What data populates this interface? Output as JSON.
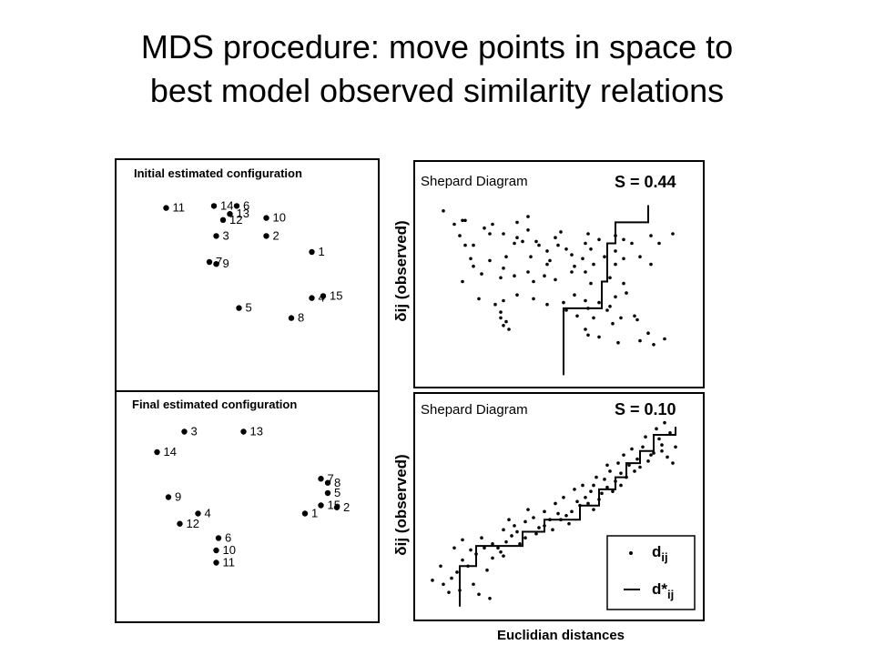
{
  "title": {
    "line1": "MDS procedure: move points in space to",
    "line2": "best model observed similarity relations"
  },
  "panels": {
    "initial_title": "Initial estimated configuration",
    "final_title": "Final estimated configuration",
    "shepard_title": "Shepard Diagram",
    "stress_initial": "S = 0.44",
    "stress_final": "S = 0.10",
    "y_label": "δij (observed)",
    "x_label": "Euclidian distances",
    "legend_points": "d",
    "legend_points_sub": "ij",
    "legend_line": "d*",
    "legend_line_sub": "ij"
  },
  "initial_configuration": [
    {
      "label": "11",
      "x": 1.5,
      "y": 8.7
    },
    {
      "label": "14",
      "x": 3.6,
      "y": 8.8
    },
    {
      "label": "6",
      "x": 4.6,
      "y": 8.8
    },
    {
      "label": "13",
      "x": 4.3,
      "y": 8.4
    },
    {
      "label": "12",
      "x": 4.0,
      "y": 8.1
    },
    {
      "label": "10",
      "x": 5.9,
      "y": 8.2
    },
    {
      "label": "3",
      "x": 3.7,
      "y": 7.3
    },
    {
      "label": "2",
      "x": 5.9,
      "y": 7.3
    },
    {
      "label": "1",
      "x": 7.9,
      "y": 6.5
    },
    {
      "label": "7",
      "x": 3.4,
      "y": 6.0
    },
    {
      "label": "9",
      "x": 3.7,
      "y": 5.9
    },
    {
      "label": "4",
      "x": 7.9,
      "y": 4.2
    },
    {
      "label": "15",
      "x": 8.4,
      "y": 4.3
    },
    {
      "label": "5",
      "x": 4.7,
      "y": 3.7
    },
    {
      "label": "8",
      "x": 7.0,
      "y": 3.2
    }
  ],
  "final_configuration": [
    {
      "label": "3",
      "x": 2.3,
      "y": 9.0
    },
    {
      "label": "13",
      "x": 4.9,
      "y": 9.0
    },
    {
      "label": "14",
      "x": 1.1,
      "y": 8.0
    },
    {
      "label": "7",
      "x": 8.3,
      "y": 6.7
    },
    {
      "label": "8",
      "x": 8.6,
      "y": 6.5
    },
    {
      "label": "5",
      "x": 8.6,
      "y": 6.0
    },
    {
      "label": "9",
      "x": 1.6,
      "y": 5.8
    },
    {
      "label": "15",
      "x": 8.3,
      "y": 5.4
    },
    {
      "label": "2",
      "x": 9.0,
      "y": 5.3
    },
    {
      "label": "1",
      "x": 7.6,
      "y": 5.0
    },
    {
      "label": "4",
      "x": 2.9,
      "y": 5.0
    },
    {
      "label": "12",
      "x": 2.1,
      "y": 4.5
    },
    {
      "label": "6",
      "x": 3.8,
      "y": 3.8
    },
    {
      "label": "10",
      "x": 3.7,
      "y": 3.2
    },
    {
      "label": "11",
      "x": 3.7,
      "y": 2.6
    }
  ],
  "shepard_initial": {
    "points": [
      [
        0.9,
        9.2
      ],
      [
        1.6,
        8.7
      ],
      [
        1.3,
        8.5
      ],
      [
        1.7,
        8.7
      ],
      [
        2.7,
        8.5
      ],
      [
        3.6,
        8.6
      ],
      [
        4.0,
        8.2
      ],
      [
        2.0,
        7.4
      ],
      [
        1.5,
        7.9
      ],
      [
        1.7,
        7.4
      ],
      [
        2.4,
        8.3
      ],
      [
        2.6,
        8.0
      ],
      [
        3.1,
        8.0
      ],
      [
        3.6,
        7.8
      ],
      [
        3.5,
        7.5
      ],
      [
        3.8,
        7.6
      ],
      [
        4.4,
        7.4
      ],
      [
        4.3,
        7.6
      ],
      [
        5.0,
        7.8
      ],
      [
        5.2,
        8.1
      ],
      [
        5.1,
        7.4
      ],
      [
        6.2,
        8.0
      ],
      [
        6.1,
        7.5
      ],
      [
        6.3,
        7.2
      ],
      [
        6.6,
        7.7
      ],
      [
        7.2,
        7.9
      ],
      [
        7.5,
        7.7
      ],
      [
        7.8,
        7.5
      ],
      [
        8.5,
        7.9
      ],
      [
        8.8,
        7.5
      ],
      [
        2.0,
        6.3
      ],
      [
        2.6,
        6.6
      ],
      [
        3.2,
        6.8
      ],
      [
        4.1,
        6.8
      ],
      [
        4.8,
        6.6
      ],
      [
        4.7,
        6.4
      ],
      [
        5.4,
        7.2
      ],
      [
        5.7,
        6.3
      ],
      [
        6.1,
        6.0
      ],
      [
        6.4,
        6.4
      ],
      [
        6.8,
        6.8
      ],
      [
        7.5,
        6.7
      ],
      [
        7.2,
        6.4
      ],
      [
        8.1,
        6.8
      ],
      [
        8.5,
        6.4
      ],
      [
        1.6,
        5.5
      ],
      [
        2.3,
        5.9
      ],
      [
        3.0,
        5.7
      ],
      [
        3.5,
        5.8
      ],
      [
        4.2,
        5.5
      ],
      [
        4.6,
        5.8
      ],
      [
        5.6,
        6.0
      ],
      [
        6.3,
        5.4
      ],
      [
        7.0,
        5.7
      ],
      [
        7.5,
        5.4
      ],
      [
        2.2,
        4.6
      ],
      [
        2.8,
        4.3
      ],
      [
        3.1,
        4.5
      ],
      [
        3.6,
        4.8
      ],
      [
        4.2,
        4.6
      ],
      [
        4.7,
        4.3
      ],
      [
        5.3,
        4.4
      ],
      [
        5.7,
        4.8
      ],
      [
        6.1,
        4.5
      ],
      [
        6.6,
        4.4
      ],
      [
        7.0,
        4.2
      ],
      [
        7.2,
        4.7
      ],
      [
        7.6,
        4.9
      ],
      [
        3.0,
        3.9
      ],
      [
        3.0,
        3.6
      ],
      [
        5.4,
        4.0
      ],
      [
        5.8,
        3.7
      ],
      [
        6.2,
        4.1
      ],
      [
        6.4,
        3.6
      ],
      [
        6.9,
        4.0
      ],
      [
        7.4,
        3.6
      ],
      [
        7.9,
        3.7
      ],
      [
        3.1,
        3.2
      ],
      [
        3.2,
        3.4
      ],
      [
        6.1,
        3.0
      ],
      [
        7.1,
        3.3
      ],
      [
        8.0,
        3.5
      ],
      [
        6.6,
        2.6
      ],
      [
        7.3,
        2.3
      ],
      [
        8.1,
        2.4
      ],
      [
        3.3,
        3.0
      ],
      [
        8.4,
        2.8
      ],
      [
        8.6,
        2.2
      ],
      [
        9.0,
        2.5
      ],
      [
        6.2,
        2.7
      ],
      [
        4.0,
        8.9
      ],
      [
        4.7,
        7.1
      ],
      [
        5.6,
        6.9
      ],
      [
        6.0,
        6.7
      ],
      [
        7.2,
        7.1
      ],
      [
        9.3,
        8.0
      ],
      [
        3.1,
        6.2
      ],
      [
        1.9,
        6.7
      ],
      [
        4.0,
        6.0
      ],
      [
        5.0,
        5.6
      ]
    ],
    "step": [
      [
        5.3,
        0.6
      ],
      [
        5.3,
        4.1
      ],
      [
        6.7,
        4.1
      ],
      [
        6.7,
        5.5
      ],
      [
        6.9,
        5.5
      ],
      [
        6.9,
        7.5
      ],
      [
        7.2,
        7.5
      ],
      [
        7.2,
        8.6
      ],
      [
        8.4,
        8.6
      ],
      [
        8.4,
        9.5
      ]
    ]
  },
  "shepard_final": {
    "points": [
      [
        0.5,
        1.9
      ],
      [
        0.8,
        2.6
      ],
      [
        0.9,
        1.7
      ],
      [
        1.2,
        2.0
      ],
      [
        1.4,
        2.3
      ],
      [
        1.6,
        2.9
      ],
      [
        1.8,
        2.6
      ],
      [
        1.5,
        1.4
      ],
      [
        2.0,
        1.7
      ],
      [
        2.2,
        1.2
      ],
      [
        2.5,
        2.4
      ],
      [
        2.7,
        3.0
      ],
      [
        2.4,
        3.5
      ],
      [
        2.3,
        4.0
      ],
      [
        2.1,
        3.2
      ],
      [
        3.0,
        3.3
      ],
      [
        3.2,
        3.8
      ],
      [
        3.4,
        4.1
      ],
      [
        3.7,
        3.7
      ],
      [
        3.9,
        4.0
      ],
      [
        4.3,
        4.2
      ],
      [
        4.6,
        4.6
      ],
      [
        4.9,
        4.4
      ],
      [
        5.2,
        4.9
      ],
      [
        5.5,
        4.7
      ],
      [
        5.6,
        5.3
      ],
      [
        5.9,
        5.6
      ],
      [
        6.2,
        5.7
      ],
      [
        6.4,
        5.4
      ],
      [
        6.6,
        5.9
      ],
      [
        6.7,
        6.2
      ],
      [
        6.9,
        6.5
      ],
      [
        7.1,
        6.3
      ],
      [
        7.4,
        6.6
      ],
      [
        7.6,
        7.0
      ],
      [
        7.9,
        7.3
      ],
      [
        8.1,
        7.5
      ],
      [
        8.4,
        7.8
      ],
      [
        8.6,
        8.2
      ],
      [
        8.9,
        8.6
      ],
      [
        9.1,
        8.0
      ],
      [
        9.4,
        8.5
      ],
      [
        9.2,
        9.2
      ],
      [
        8.7,
        9.4
      ],
      [
        8.3,
        9.0
      ],
      [
        7.8,
        8.4
      ],
      [
        7.3,
        7.7
      ],
      [
        7.0,
        7.3
      ],
      [
        6.5,
        7.0
      ],
      [
        6.0,
        6.6
      ],
      [
        5.7,
        6.4
      ],
      [
        5.3,
        6.0
      ],
      [
        5.0,
        5.7
      ],
      [
        4.6,
        5.3
      ],
      [
        4.2,
        5.0
      ],
      [
        3.9,
        4.8
      ],
      [
        3.5,
        4.6
      ],
      [
        3.1,
        4.4
      ],
      [
        2.7,
        3.7
      ],
      [
        1.9,
        3.4
      ],
      [
        1.6,
        3.9
      ],
      [
        1.3,
        3.5
      ],
      [
        6.3,
        6.3
      ],
      [
        6.8,
        6.9
      ],
      [
        7.2,
        6.8
      ],
      [
        7.7,
        7.6
      ],
      [
        8.0,
        7.9
      ],
      [
        8.2,
        8.5
      ],
      [
        8.8,
        8.9
      ],
      [
        9.0,
        9.7
      ],
      [
        2.6,
        1.0
      ],
      [
        1.1,
        1.3
      ],
      [
        3.1,
        3.1
      ],
      [
        4.4,
        4.5
      ],
      [
        5.4,
        5.1
      ],
      [
        6.1,
        6.0
      ],
      [
        6.9,
        7.6
      ],
      [
        7.5,
        8.1
      ],
      [
        8.5,
        8.1
      ],
      [
        9.3,
        7.7
      ],
      [
        4.0,
        5.4
      ],
      [
        5.8,
        5.8
      ],
      [
        3.3,
        4.9
      ],
      [
        2.9,
        3.5
      ],
      [
        7.4,
        7.2
      ],
      [
        8.9,
        8.3
      ],
      [
        6.4,
        6.6
      ],
      [
        5.1,
        5.2
      ],
      [
        4.8,
        4.9
      ],
      [
        3.6,
        4.3
      ]
    ],
    "step": [
      [
        1.5,
        0.6
      ],
      [
        1.5,
        2.6
      ],
      [
        2.1,
        2.6
      ],
      [
        2.1,
        3.6
      ],
      [
        3.8,
        3.6
      ],
      [
        3.8,
        4.3
      ],
      [
        4.6,
        4.3
      ],
      [
        4.6,
        4.9
      ],
      [
        5.9,
        4.9
      ],
      [
        5.9,
        5.6
      ],
      [
        6.6,
        5.6
      ],
      [
        6.6,
        6.4
      ],
      [
        7.2,
        6.4
      ],
      [
        7.2,
        7.0
      ],
      [
        7.6,
        7.0
      ],
      [
        7.6,
        7.7
      ],
      [
        8.1,
        7.7
      ],
      [
        8.1,
        8.3
      ],
      [
        8.6,
        8.3
      ],
      [
        8.6,
        9.1
      ],
      [
        9.4,
        9.1
      ],
      [
        9.4,
        9.5
      ]
    ]
  }
}
